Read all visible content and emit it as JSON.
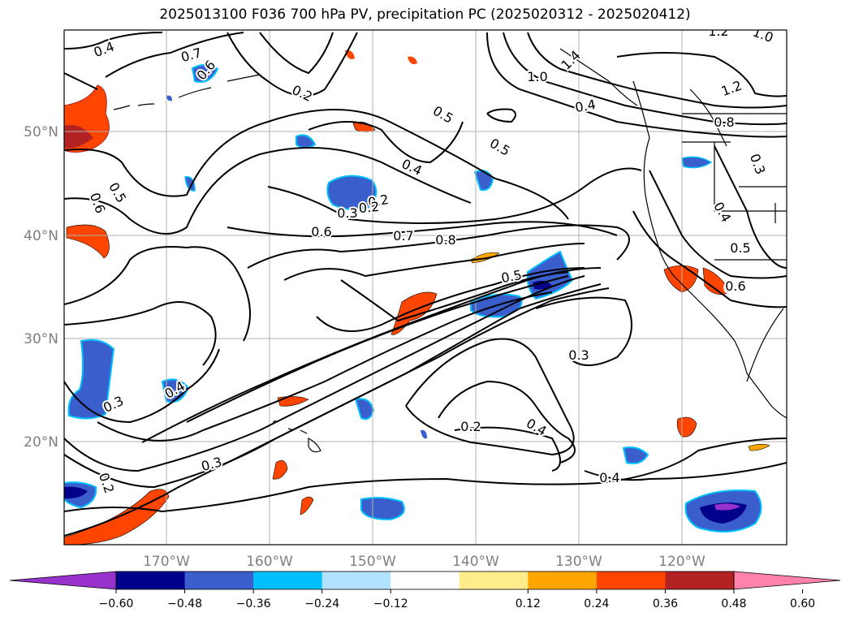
{
  "title": "2025013100 F036 700 hPa PV, precipitation PC (2025020312 - 2025020412)",
  "map": {
    "lat_labels": [
      "50°N",
      "40°N",
      "30°N",
      "20°N"
    ],
    "lon_labels": [
      "170°W",
      "160°W",
      "150°W",
      "140°W",
      "130°W",
      "120°W"
    ]
  },
  "contour_labels": [
    "0.4",
    "0.7",
    "0.6",
    "0.2",
    "0.5",
    "0.5",
    "0.4",
    "0.3",
    "0.2",
    "0.6",
    "0.7",
    "0.8",
    "0.5",
    "0.5",
    "0.6",
    "0.6",
    "0.3",
    "0.4",
    "0.3",
    "0.2",
    "0.3",
    "0.2",
    "0.4",
    "0.4",
    "0.2",
    "1.2",
    "1.0",
    "1.0",
    "1.4",
    "1.2",
    "0.8",
    "0.3",
    "0.4",
    "0.5",
    "0.6",
    "0.4"
  ],
  "colorbar": {
    "ticks": [
      "−0.60",
      "−0.48",
      "−0.36",
      "−0.24",
      "−0.12",
      "0.12",
      "0.24",
      "0.36",
      "0.48",
      "0.60"
    ],
    "colors": [
      "#9932cc",
      "#00008b",
      "#3a5fcd",
      "#00bfff",
      "#b0e2ff",
      "#ffffff",
      "#ffec8b",
      "#ffa500",
      "#ff4500",
      "#b22222",
      "#ff82ab"
    ]
  }
}
